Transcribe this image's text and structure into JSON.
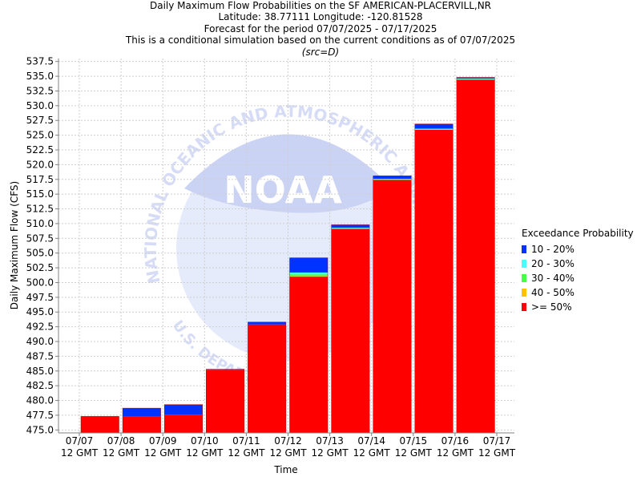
{
  "titles": {
    "line1": "Daily Maximum Flow Probabilities on the SF AMERICAN-PLACERVILL,NR",
    "line2": "Latitude: 38.77111 Longitude: -120.81528",
    "line3": "Forecast for the period 07/07/2025 - 07/17/2025",
    "line4": "This is a conditional simulation based on the current conditions as of 07/07/2025",
    "line5": "(src=D)"
  },
  "legend": {
    "title": "Exceedance Probability",
    "items": [
      {
        "label": "10 - 20%",
        "color": "#0033ff"
      },
      {
        "label": "20 - 30%",
        "color": "#44ffff"
      },
      {
        "label": "30 - 40%",
        "color": "#44ff44"
      },
      {
        "label": "40 - 50%",
        "color": "#ffc000"
      },
      {
        "label": ">= 50%",
        "color": "#ff0000"
      }
    ]
  },
  "watermark": {
    "text": "NOAA",
    "ring_text": "NATIONAL OCEANIC AND ATMOSPHERIC ADMINISTRATION",
    "bottom_text": "U.S. DEPARTMENT OF COMMERCE"
  },
  "chart_data": {
    "type": "bar",
    "stacked": true,
    "xlabel": "Time",
    "ylabel": "Daily Maximum Flow (CFS)",
    "ylim": [
      474.5,
      538
    ],
    "grid": true,
    "legend_position": "right",
    "yticks": [
      "475.0",
      "477.5",
      "480.0",
      "482.5",
      "485.0",
      "487.5",
      "490.0",
      "492.5",
      "495.0",
      "497.5",
      "500.0",
      "502.5",
      "505.0",
      "507.5",
      "510.0",
      "512.5",
      "515.0",
      "517.5",
      "520.0",
      "522.5",
      "525.0",
      "527.5",
      "530.0",
      "532.5",
      "535.0",
      "537.5"
    ],
    "xticks": [
      {
        "date": "07/07",
        "time": "12 GMT"
      },
      {
        "date": "07/08",
        "time": "12 GMT"
      },
      {
        "date": "07/09",
        "time": "12 GMT"
      },
      {
        "date": "07/10",
        "time": "12 GMT"
      },
      {
        "date": "07/11",
        "time": "12 GMT"
      },
      {
        "date": "07/12",
        "time": "12 GMT"
      },
      {
        "date": "07/13",
        "time": "12 GMT"
      },
      {
        "date": "07/14",
        "time": "12 GMT"
      },
      {
        "date": "07/15",
        "time": "12 GMT"
      },
      {
        "date": "07/16",
        "time": "12 GMT"
      },
      {
        "date": "07/17",
        "time": "12 GMT"
      }
    ],
    "categories": [
      "07/07",
      "07/08",
      "07/09",
      "07/10",
      "07/11",
      "07/12",
      "07/13",
      "07/14",
      "07/15",
      "07/16"
    ],
    "bars": [
      {
        "ge50": 477.3,
        "p40_50": 477.3,
        "p30_40": 477.3,
        "p20_30": 477.3,
        "p10_20": 477.3
      },
      {
        "ge50": 477.3,
        "p40_50": 477.3,
        "p30_40": 477.3,
        "p20_30": 477.3,
        "p10_20": 478.7
      },
      {
        "ge50": 477.6,
        "p40_50": 477.6,
        "p30_40": 477.6,
        "p20_30": 477.6,
        "p10_20": 479.3
      },
      {
        "ge50": 485.2,
        "p40_50": 485.2,
        "p30_40": 485.2,
        "p20_30": 485.2,
        "p10_20": 485.3
      },
      {
        "ge50": 492.9,
        "p40_50": 492.9,
        "p30_40": 492.9,
        "p20_30": 492.9,
        "p10_20": 493.3
      },
      {
        "ge50": 501.0,
        "p40_50": 501.1,
        "p30_40": 501.4,
        "p20_30": 501.7,
        "p10_20": 504.2
      },
      {
        "ge50": 509.1,
        "p40_50": 509.1,
        "p30_40": 509.2,
        "p20_30": 509.3,
        "p10_20": 509.8
      },
      {
        "ge50": 517.4,
        "p40_50": 517.4,
        "p30_40": 517.5,
        "p20_30": 517.6,
        "p10_20": 518.1
      },
      {
        "ge50": 525.9,
        "p40_50": 525.9,
        "p30_40": 526.0,
        "p20_30": 526.1,
        "p10_20": 526.9
      },
      {
        "ge50": 534.4,
        "p40_50": 534.4,
        "p30_40": 534.5,
        "p20_30": 534.6,
        "p10_20": 534.8
      }
    ]
  }
}
